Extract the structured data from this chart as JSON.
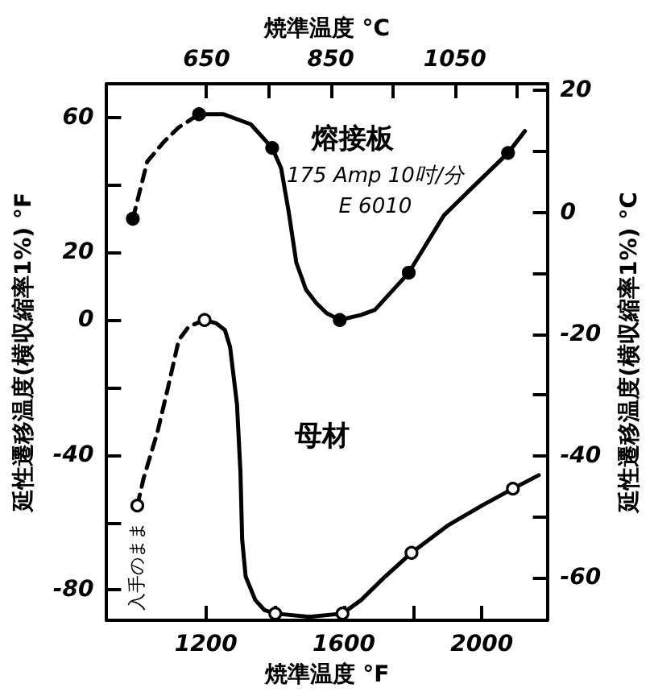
{
  "chart_data": {
    "type": "line",
    "xlabel": "焼準温度 °F",
    "x2label": "焼準温度 °C",
    "ylabel": "延性遷移温度(横収縮率1%) °F",
    "y2label": "延性遷移温度(横収縮率1%) °C",
    "xlim": [
      912,
      2190
    ],
    "xticks": [
      1200,
      {
        "value": 1400,
        "label": null
      },
      1600,
      {
        "value": 1800,
        "label": null
      },
      2000
    ],
    "x2lim": [
      489,
      1199
    ],
    "x2ticks": [
      650,
      {
        "value": 750,
        "label": null
      },
      850,
      {
        "value": 950,
        "label": null
      },
      1050,
      {
        "value": 1150,
        "label": null
      }
    ],
    "ylim": [
      -89,
      70
    ],
    "yticks": [
      60,
      {
        "value": 40,
        "label": null
      },
      20,
      0,
      {
        "value": -20,
        "label": null
      },
      -40,
      {
        "value": -60,
        "label": null
      },
      -80
    ],
    "y2lim": [
      -67,
      21.1
    ],
    "y2ticks": [
      20,
      {
        "value": 10,
        "label": null
      },
      0,
      {
        "value": -10,
        "label": null
      },
      -20,
      {
        "value": -30,
        "label": null
      },
      -40,
      {
        "value": -50,
        "label": null
      },
      -60
    ],
    "series": [
      {
        "color": "#000000",
        "line_style": "dashed",
        "marker": "none",
        "x": [
          988,
          1030,
          1080,
          1120,
          1180
        ],
        "values": [
          30,
          47,
          53,
          57,
          61
        ]
      },
      {
        "name": "熔接板",
        "color": "#000000",
        "line_style": "solid",
        "marker": "none",
        "x": [
          1180,
          1250,
          1330,
          1392,
          1418,
          1440,
          1462,
          1490,
          1520,
          1550,
          1588,
          1650,
          1690,
          1788,
          1890,
          1980,
          2076,
          2125
        ],
        "values": [
          61,
          61,
          58,
          51,
          45,
          32,
          17,
          9,
          5,
          2,
          0,
          1.5,
          3,
          14,
          31,
          40,
          49.5,
          56
        ]
      },
      {
        "type": "scatter",
        "color": "#000000",
        "marker": "circle",
        "x": [
          988,
          1180,
          1392,
          1588,
          1788,
          2076
        ],
        "values": [
          30,
          61,
          51,
          0,
          14,
          49.5
        ]
      },
      {
        "color": "#000000",
        "line_style": "dashed",
        "marker": "none",
        "x": [
          1001,
          1019,
          1060,
          1090,
          1121,
          1150,
          1196
        ],
        "values": [
          -55,
          -47,
          -33,
          -20,
          -6,
          -2,
          0
        ]
      },
      {
        "name": "母材",
        "color": "#000000",
        "line_style": "solid",
        "marker": "none",
        "x": [
          1196,
          1230,
          1255,
          1270,
          1290,
          1300,
          1305,
          1315,
          1343,
          1370,
          1401,
          1500,
          1596,
          1650,
          1720,
          1796,
          1900,
          2000,
          2090,
          2165
        ],
        "values": [
          0,
          -1,
          -3,
          -8,
          -25,
          -45,
          -65,
          -76,
          -83,
          -86,
          -87,
          -88,
          -87,
          -83,
          -76,
          -69,
          -61,
          -55,
          -50,
          -46
        ]
      },
      {
        "type": "scatter",
        "color": "#ffffff",
        "marker": "circle",
        "x": [
          1001,
          1196,
          1401,
          1596,
          1796,
          2090
        ],
        "values": [
          -55,
          0,
          -87,
          -87,
          -69,
          -50
        ]
      }
    ],
    "annotations": [
      "175 Amp 10吋/分",
      "E 6010",
      {
        "text": "入手のまま",
        "x": 1001,
        "y": -55
      }
    ]
  }
}
